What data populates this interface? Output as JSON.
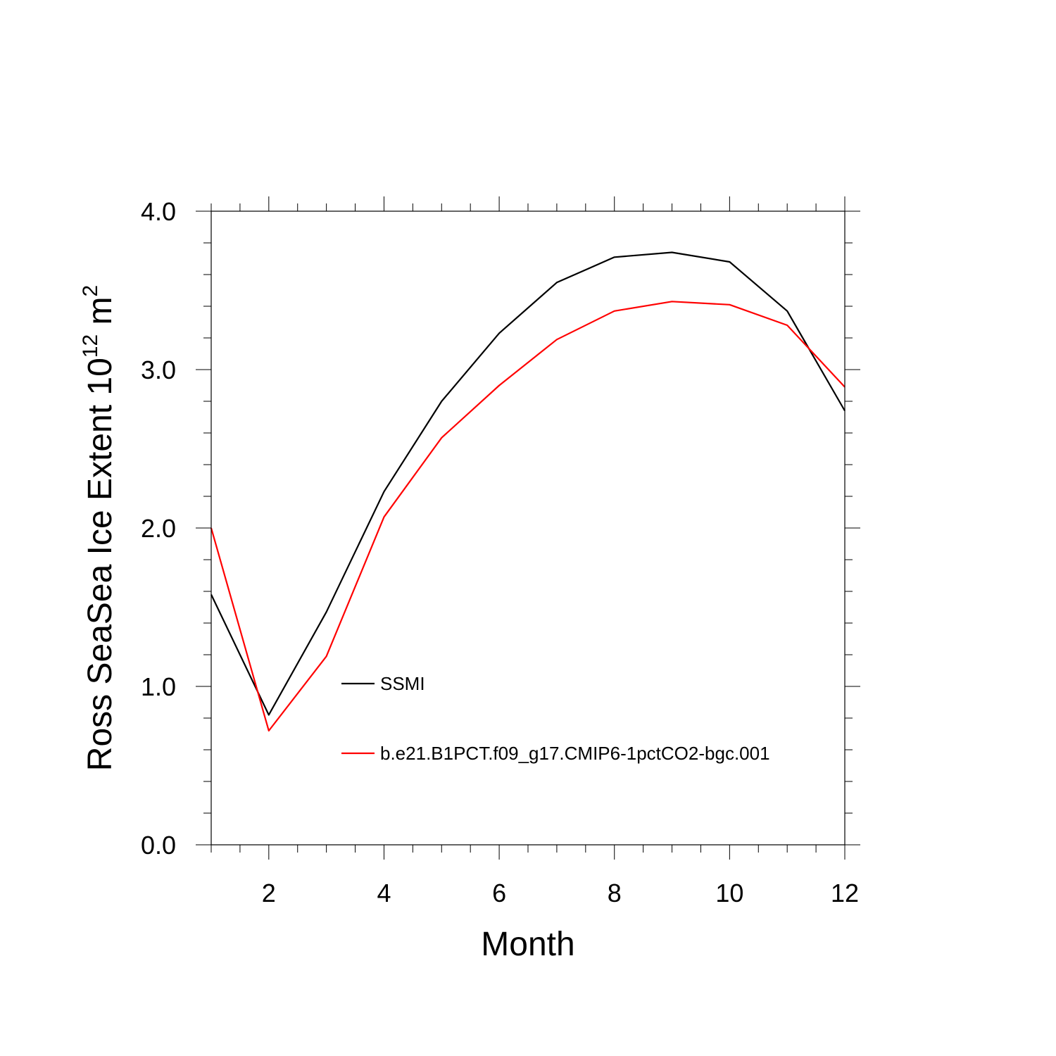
{
  "chart_data": {
    "type": "line",
    "xlabel": "Month",
    "ylabel": {
      "prefix": "Ross SeaSea Ice Extent 10",
      "exponent": "12",
      "unit": " m",
      "unit_exponent": "2"
    },
    "xlim": [
      1,
      12
    ],
    "ylim": [
      0,
      4
    ],
    "x_ticks": [
      2,
      4,
      6,
      8,
      10,
      12
    ],
    "x_tick_labels": [
      "2",
      "4",
      "6",
      "8",
      "10",
      "12"
    ],
    "y_ticks": [
      0,
      1,
      2,
      3,
      4
    ],
    "y_tick_labels": [
      "0.0",
      "1.0",
      "2.0",
      "3.0",
      "4.0"
    ],
    "x": [
      1,
      2,
      3,
      4,
      5,
      6,
      7,
      8,
      9,
      10,
      11,
      12
    ],
    "series": [
      {
        "name": "SSMI",
        "color": "#000000",
        "values": [
          1.58,
          0.82,
          1.47,
          2.23,
          2.8,
          3.23,
          3.55,
          3.71,
          3.74,
          3.68,
          3.37,
          2.74
        ]
      },
      {
        "name": "b.e21.B1PCT.f09_g17.CMIP6-1pctCO2-bgc.001",
        "color": "#ff0000",
        "values": [
          2.0,
          0.72,
          1.19,
          2.07,
          2.57,
          2.9,
          3.19,
          3.37,
          3.43,
          3.41,
          3.28,
          2.89
        ]
      }
    ],
    "grid": false,
    "legend_position": "center"
  }
}
